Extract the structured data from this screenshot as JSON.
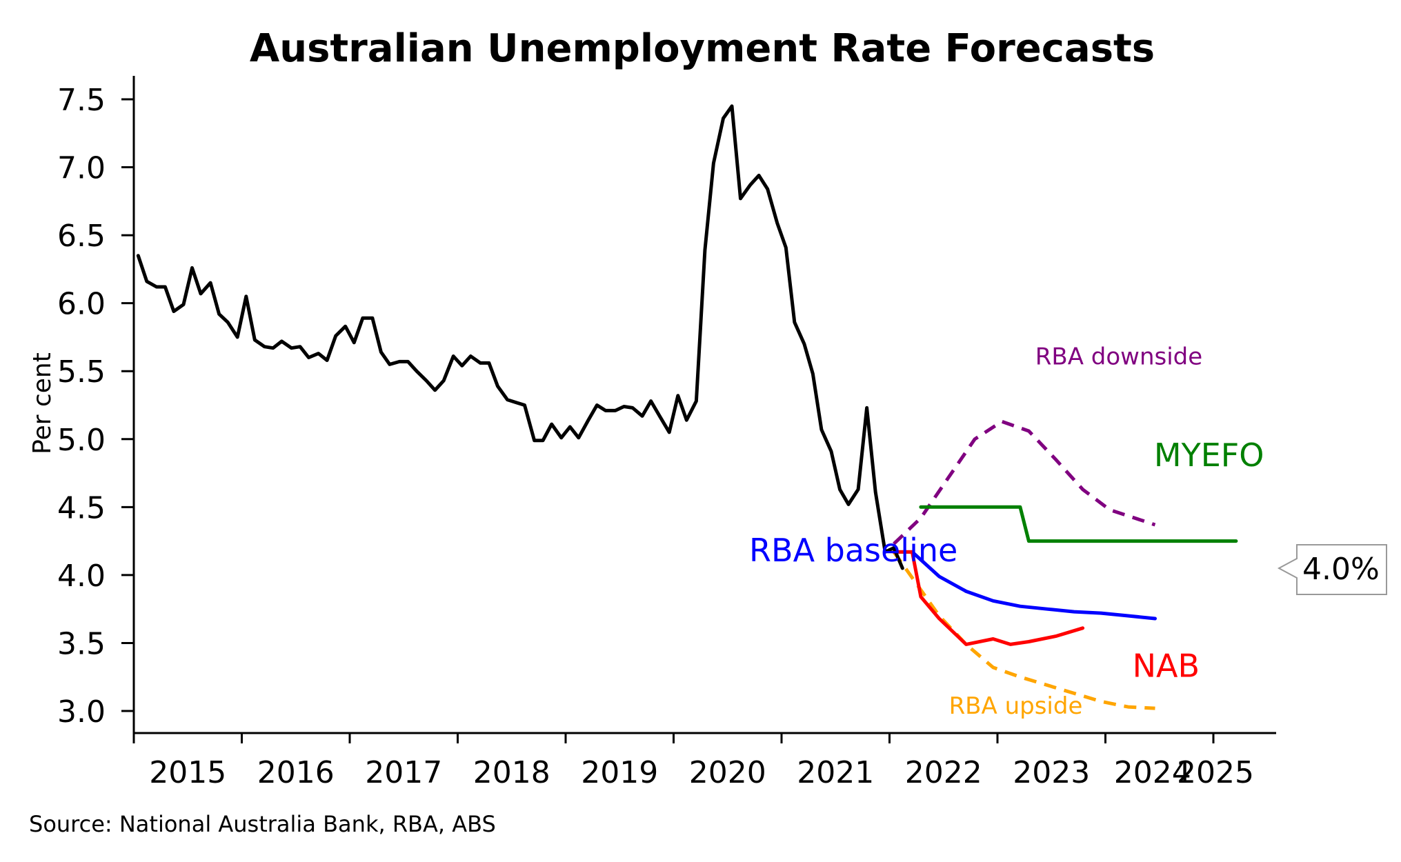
{
  "chart_data": {
    "type": "line",
    "title": "Australian Unemployment Rate Forecasts",
    "ylabel": "Per cent",
    "xlabel": "",
    "source": "Source: National Australia Bank, RBA, ABS",
    "ylim": [
      3.0,
      7.5
    ],
    "xlim": [
      2015.0,
      2025.6
    ],
    "y_ticks": [
      "3.0",
      "3.5",
      "4.0",
      "4.5",
      "5.0",
      "5.5",
      "6.0",
      "6.5",
      "7.0",
      "7.5"
    ],
    "x_ticks": [
      "2015",
      "2016",
      "2017",
      "2018",
      "2019",
      "2020",
      "2021",
      "2022",
      "2023",
      "2024",
      "2025"
    ],
    "grid": false,
    "callout": "4.0%",
    "callout_value": 4.05,
    "series": [
      {
        "name": "",
        "color": "#000000",
        "dash": "solid",
        "points": [
          [
            2015.04,
            6.35
          ],
          [
            2015.12,
            6.16
          ],
          [
            2015.21,
            6.12
          ],
          [
            2015.29,
            6.12
          ],
          [
            2015.37,
            5.94
          ],
          [
            2015.46,
            5.99
          ],
          [
            2015.54,
            6.26
          ],
          [
            2015.62,
            6.07
          ],
          [
            2015.71,
            6.15
          ],
          [
            2015.79,
            5.92
          ],
          [
            2015.87,
            5.86
          ],
          [
            2015.96,
            5.75
          ],
          [
            2016.04,
            6.05
          ],
          [
            2016.12,
            5.73
          ],
          [
            2016.21,
            5.68
          ],
          [
            2016.29,
            5.67
          ],
          [
            2016.37,
            5.72
          ],
          [
            2016.46,
            5.67
          ],
          [
            2016.54,
            5.68
          ],
          [
            2016.62,
            5.6
          ],
          [
            2016.71,
            5.63
          ],
          [
            2016.79,
            5.58
          ],
          [
            2016.87,
            5.76
          ],
          [
            2016.96,
            5.83
          ],
          [
            2017.04,
            5.71
          ],
          [
            2017.12,
            5.89
          ],
          [
            2017.21,
            5.89
          ],
          [
            2017.29,
            5.64
          ],
          [
            2017.37,
            5.55
          ],
          [
            2017.46,
            5.57
          ],
          [
            2017.54,
            5.57
          ],
          [
            2017.62,
            5.5
          ],
          [
            2017.71,
            5.43
          ],
          [
            2017.79,
            5.36
          ],
          [
            2017.87,
            5.43
          ],
          [
            2017.96,
            5.61
          ],
          [
            2018.04,
            5.54
          ],
          [
            2018.12,
            5.61
          ],
          [
            2018.21,
            5.56
          ],
          [
            2018.29,
            5.56
          ],
          [
            2018.37,
            5.39
          ],
          [
            2018.46,
            5.29
          ],
          [
            2018.54,
            5.27
          ],
          [
            2018.62,
            5.25
          ],
          [
            2018.71,
            4.99
          ],
          [
            2018.79,
            4.99
          ],
          [
            2018.87,
            5.11
          ],
          [
            2018.96,
            5.01
          ],
          [
            2019.04,
            5.09
          ],
          [
            2019.12,
            5.01
          ],
          [
            2019.21,
            5.14
          ],
          [
            2019.29,
            5.25
          ],
          [
            2019.37,
            5.21
          ],
          [
            2019.46,
            5.21
          ],
          [
            2019.54,
            5.24
          ],
          [
            2019.62,
            5.23
          ],
          [
            2019.71,
            5.17
          ],
          [
            2019.79,
            5.28
          ],
          [
            2019.87,
            5.17
          ],
          [
            2019.96,
            5.05
          ],
          [
            2020.04,
            5.32
          ],
          [
            2020.12,
            5.14
          ],
          [
            2020.21,
            5.28
          ],
          [
            2020.29,
            6.39
          ],
          [
            2020.37,
            7.03
          ],
          [
            2020.46,
            7.36
          ],
          [
            2020.54,
            7.45
          ],
          [
            2020.62,
            6.77
          ],
          [
            2020.71,
            6.87
          ],
          [
            2020.79,
            6.94
          ],
          [
            2020.87,
            6.84
          ],
          [
            2020.96,
            6.59
          ],
          [
            2021.04,
            6.41
          ],
          [
            2021.12,
            5.86
          ],
          [
            2021.21,
            5.7
          ],
          [
            2021.29,
            5.48
          ],
          [
            2021.37,
            5.07
          ],
          [
            2021.46,
            4.91
          ],
          [
            2021.54,
            4.63
          ],
          [
            2021.62,
            4.52
          ],
          [
            2021.71,
            4.63
          ],
          [
            2021.79,
            5.23
          ],
          [
            2021.87,
            4.61
          ],
          [
            2021.96,
            4.17
          ],
          [
            2022.04,
            4.2
          ],
          [
            2022.12,
            4.05
          ]
        ]
      },
      {
        "name": "RBA baseline",
        "color": "#0000ff",
        "dash": "solid",
        "points": [
          [
            2022.04,
            4.17
          ],
          [
            2022.21,
            4.17
          ],
          [
            2022.46,
            3.99
          ],
          [
            2022.71,
            3.88
          ],
          [
            2022.96,
            3.81
          ],
          [
            2023.21,
            3.77
          ],
          [
            2023.46,
            3.75
          ],
          [
            2023.71,
            3.73
          ],
          [
            2023.96,
            3.72
          ],
          [
            2024.21,
            3.7
          ],
          [
            2024.46,
            3.68
          ]
        ]
      },
      {
        "name": "NAB",
        "color": "#ff0000",
        "dash": "solid",
        "points": [
          [
            2022.04,
            4.17
          ],
          [
            2022.21,
            4.17
          ],
          [
            2022.29,
            3.84
          ],
          [
            2022.46,
            3.68
          ],
          [
            2022.71,
            3.49
          ],
          [
            2022.96,
            3.53
          ],
          [
            2023.12,
            3.49
          ],
          [
            2023.29,
            3.51
          ],
          [
            2023.54,
            3.55
          ],
          [
            2023.79,
            3.61
          ]
        ]
      },
      {
        "name": "RBA upside",
        "color": "#ffa500",
        "dash": "dashed",
        "points": [
          [
            2022.04,
            4.17
          ],
          [
            2022.21,
            3.98
          ],
          [
            2022.46,
            3.7
          ],
          [
            2022.71,
            3.49
          ],
          [
            2022.96,
            3.32
          ],
          [
            2023.21,
            3.25
          ],
          [
            2023.46,
            3.19
          ],
          [
            2023.71,
            3.13
          ],
          [
            2023.96,
            3.07
          ],
          [
            2024.21,
            3.03
          ],
          [
            2024.46,
            3.02
          ]
        ]
      },
      {
        "name": "RBA downside",
        "color": "#800080",
        "dash": "dashed",
        "points": [
          [
            2022.04,
            4.23
          ],
          [
            2022.29,
            4.42
          ],
          [
            2022.54,
            4.71
          ],
          [
            2022.79,
            5.0
          ],
          [
            2023.04,
            5.13
          ],
          [
            2023.29,
            5.06
          ],
          [
            2023.54,
            4.85
          ],
          [
            2023.79,
            4.63
          ],
          [
            2024.04,
            4.48
          ],
          [
            2024.46,
            4.37
          ]
        ]
      },
      {
        "name": "MYEFO",
        "color": "#008000",
        "dash": "solid",
        "points": [
          [
            2022.29,
            4.5
          ],
          [
            2022.54,
            4.5
          ],
          [
            2022.79,
            4.5
          ],
          [
            2023.04,
            4.5
          ],
          [
            2023.21,
            4.5
          ],
          [
            2023.29,
            4.25
          ],
          [
            2023.54,
            4.25
          ],
          [
            2024.04,
            4.25
          ],
          [
            2024.54,
            4.25
          ],
          [
            2025.04,
            4.25
          ],
          [
            2025.21,
            4.25
          ]
        ]
      }
    ],
    "annotations": [
      {
        "text": "RBA downside",
        "x": 2023.35,
        "y": 5.55,
        "color": "#800080",
        "size": "small"
      },
      {
        "text": "MYEFO",
        "x": 2024.45,
        "y": 4.8,
        "color": "#008000",
        "size": "large"
      },
      {
        "text": "RBA baseline",
        "x": 2020.7,
        "y": 4.1,
        "color": "#0000ff",
        "size": "large"
      },
      {
        "text": "NAB",
        "x": 2024.25,
        "y": 3.25,
        "color": "#ff0000",
        "size": "large"
      },
      {
        "text": "RBA upside",
        "x": 2022.55,
        "y": 2.98,
        "color": "#ffa500",
        "size": "small"
      }
    ]
  }
}
